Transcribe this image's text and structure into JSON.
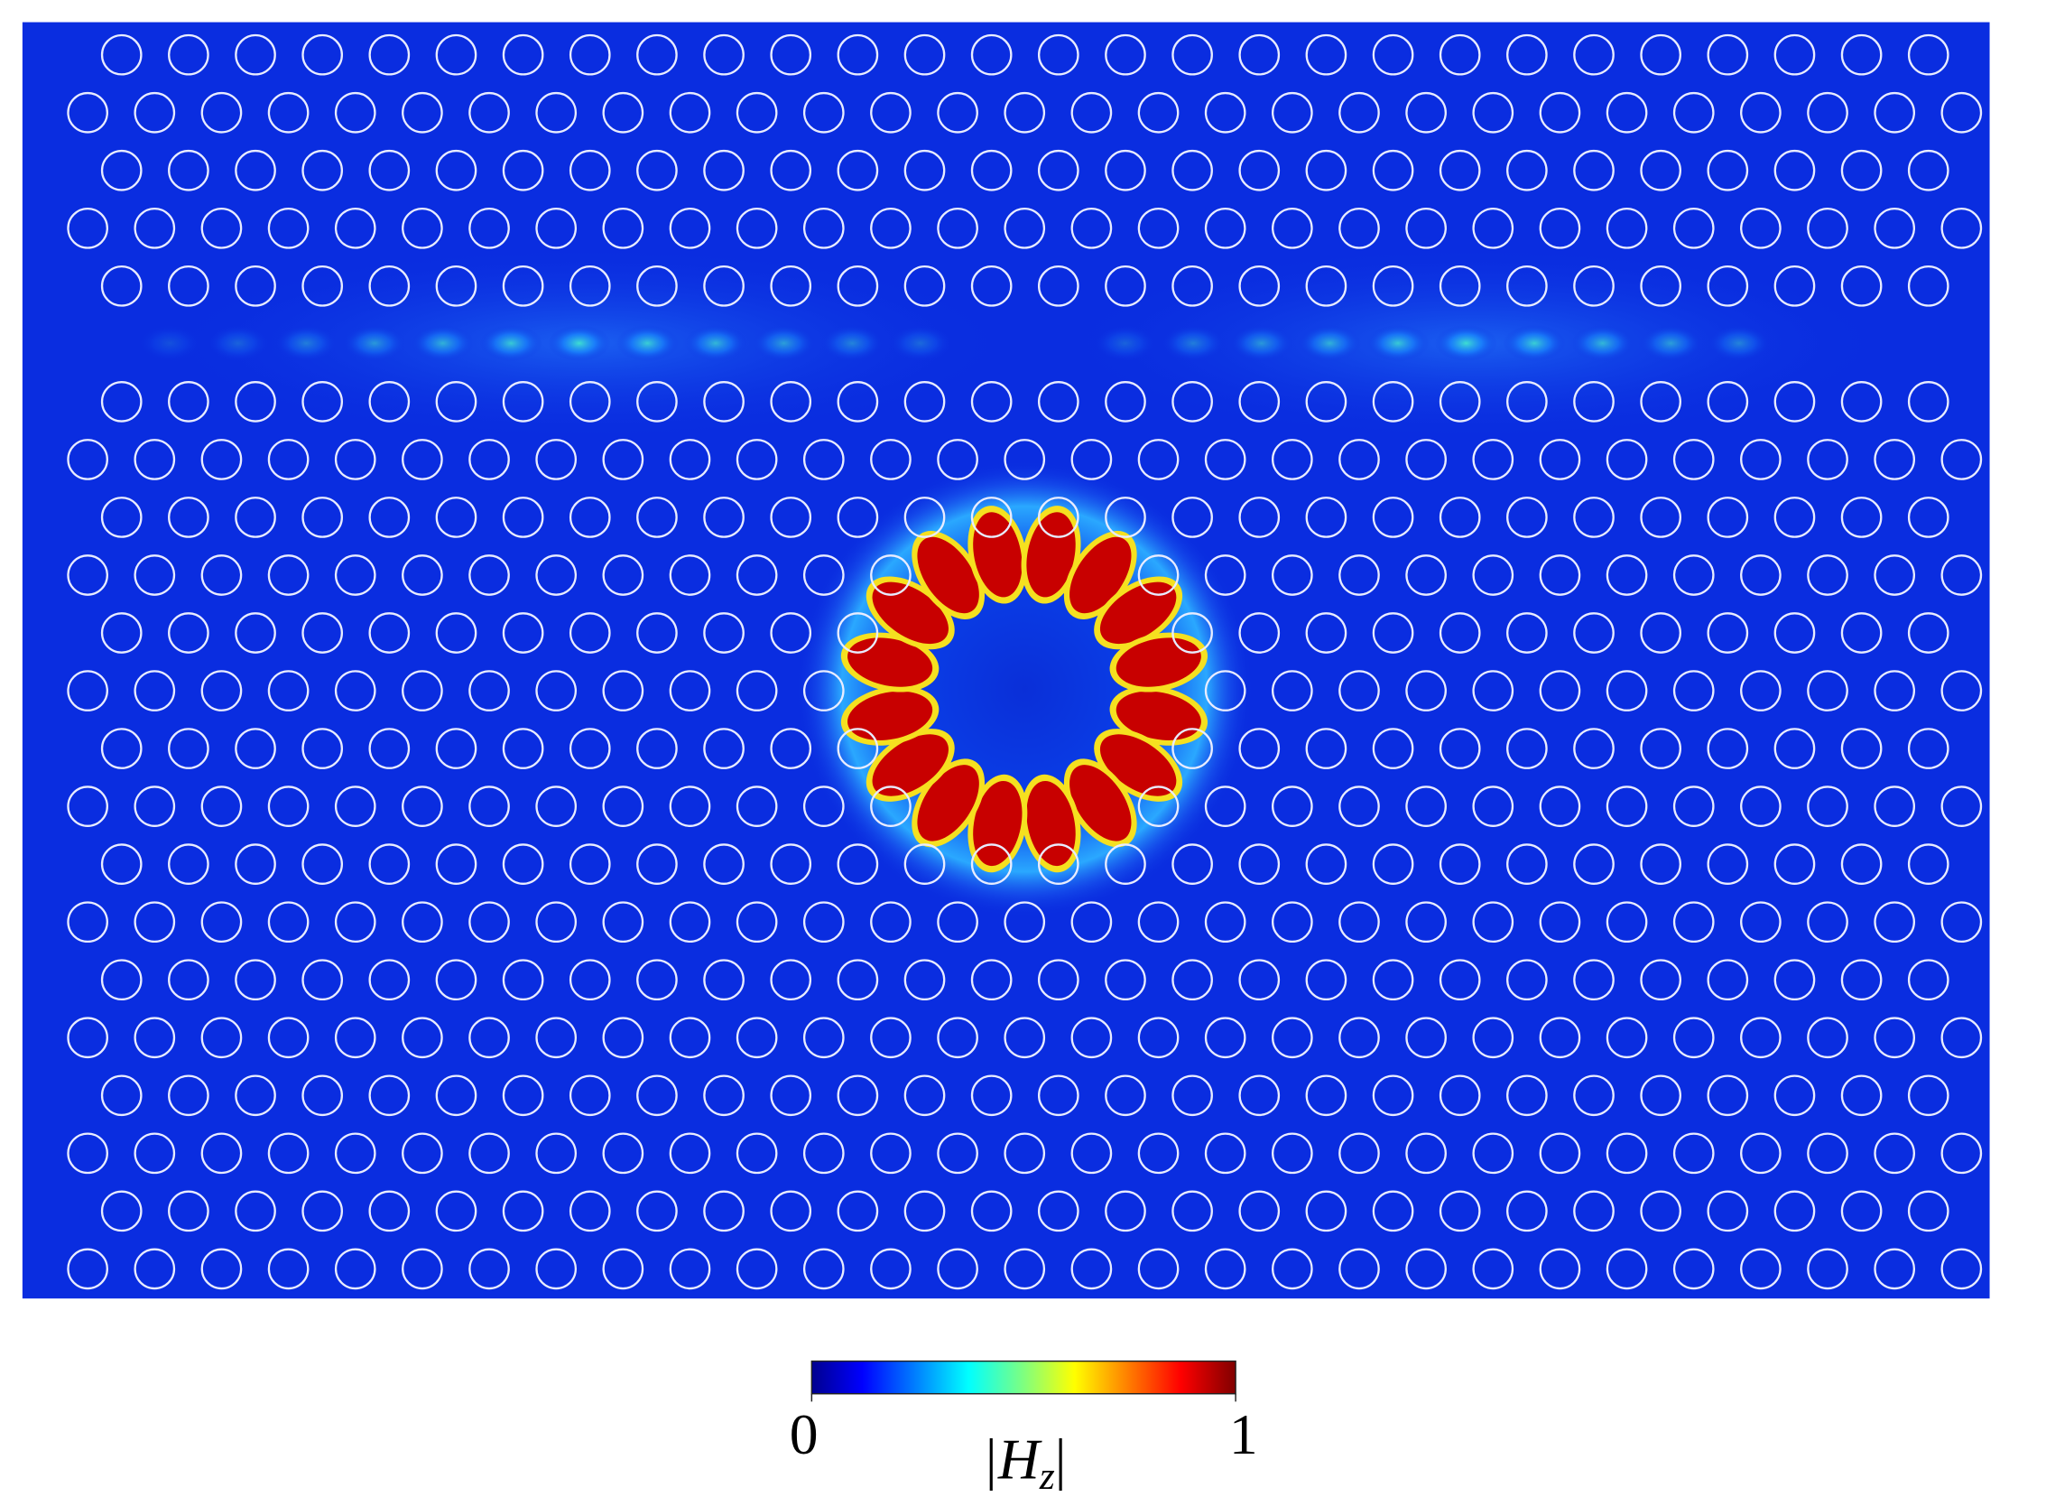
{
  "figure": {
    "colorbar": {
      "range": [
        0,
        1
      ],
      "ticks": [
        0,
        1
      ],
      "label": "|H",
      "label_sub": "z",
      "label_close": "|"
    }
  }
}
